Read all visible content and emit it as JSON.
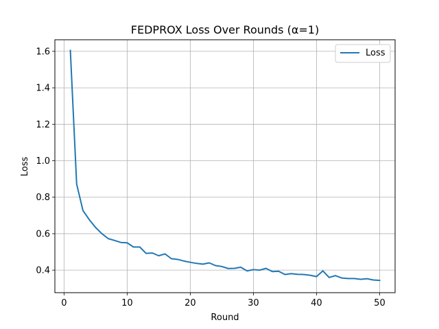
{
  "chart_data": {
    "type": "line",
    "title": "FEDPROX Loss Over Rounds (α=1)",
    "xlabel": "Round",
    "ylabel": "Loss",
    "xlim": [
      -1.45,
      52.45
    ],
    "ylim": [
      0.2765,
      1.6635
    ],
    "xticks": [
      0,
      10,
      20,
      30,
      40,
      50
    ],
    "yticks": [
      0.4,
      0.6,
      0.8,
      1.0,
      1.2,
      1.4,
      1.6
    ],
    "grid": true,
    "legend": {
      "position": "top-right"
    },
    "series": [
      {
        "name": "Loss",
        "color": "#1f77b4",
        "x": [
          1,
          2,
          3,
          4,
          5,
          6,
          7,
          8,
          9,
          10,
          11,
          12,
          13,
          14,
          15,
          16,
          17,
          18,
          19,
          20,
          21,
          22,
          23,
          24,
          25,
          26,
          27,
          28,
          29,
          30,
          31,
          32,
          33,
          34,
          35,
          36,
          37,
          38,
          39,
          40,
          41,
          42,
          43,
          44,
          45,
          46,
          47,
          48,
          49,
          50
        ],
        "y": [
          1.605,
          0.872,
          0.727,
          0.677,
          0.634,
          0.6,
          0.573,
          0.563,
          0.552,
          0.55,
          0.527,
          0.527,
          0.492,
          0.494,
          0.479,
          0.489,
          0.463,
          0.459,
          0.45,
          0.443,
          0.437,
          0.433,
          0.44,
          0.425,
          0.42,
          0.409,
          0.41,
          0.416,
          0.396,
          0.403,
          0.4,
          0.41,
          0.392,
          0.394,
          0.376,
          0.381,
          0.377,
          0.376,
          0.372,
          0.365,
          0.396,
          0.36,
          0.37,
          0.357,
          0.354,
          0.354,
          0.35,
          0.353,
          0.346,
          0.344
        ]
      }
    ]
  }
}
